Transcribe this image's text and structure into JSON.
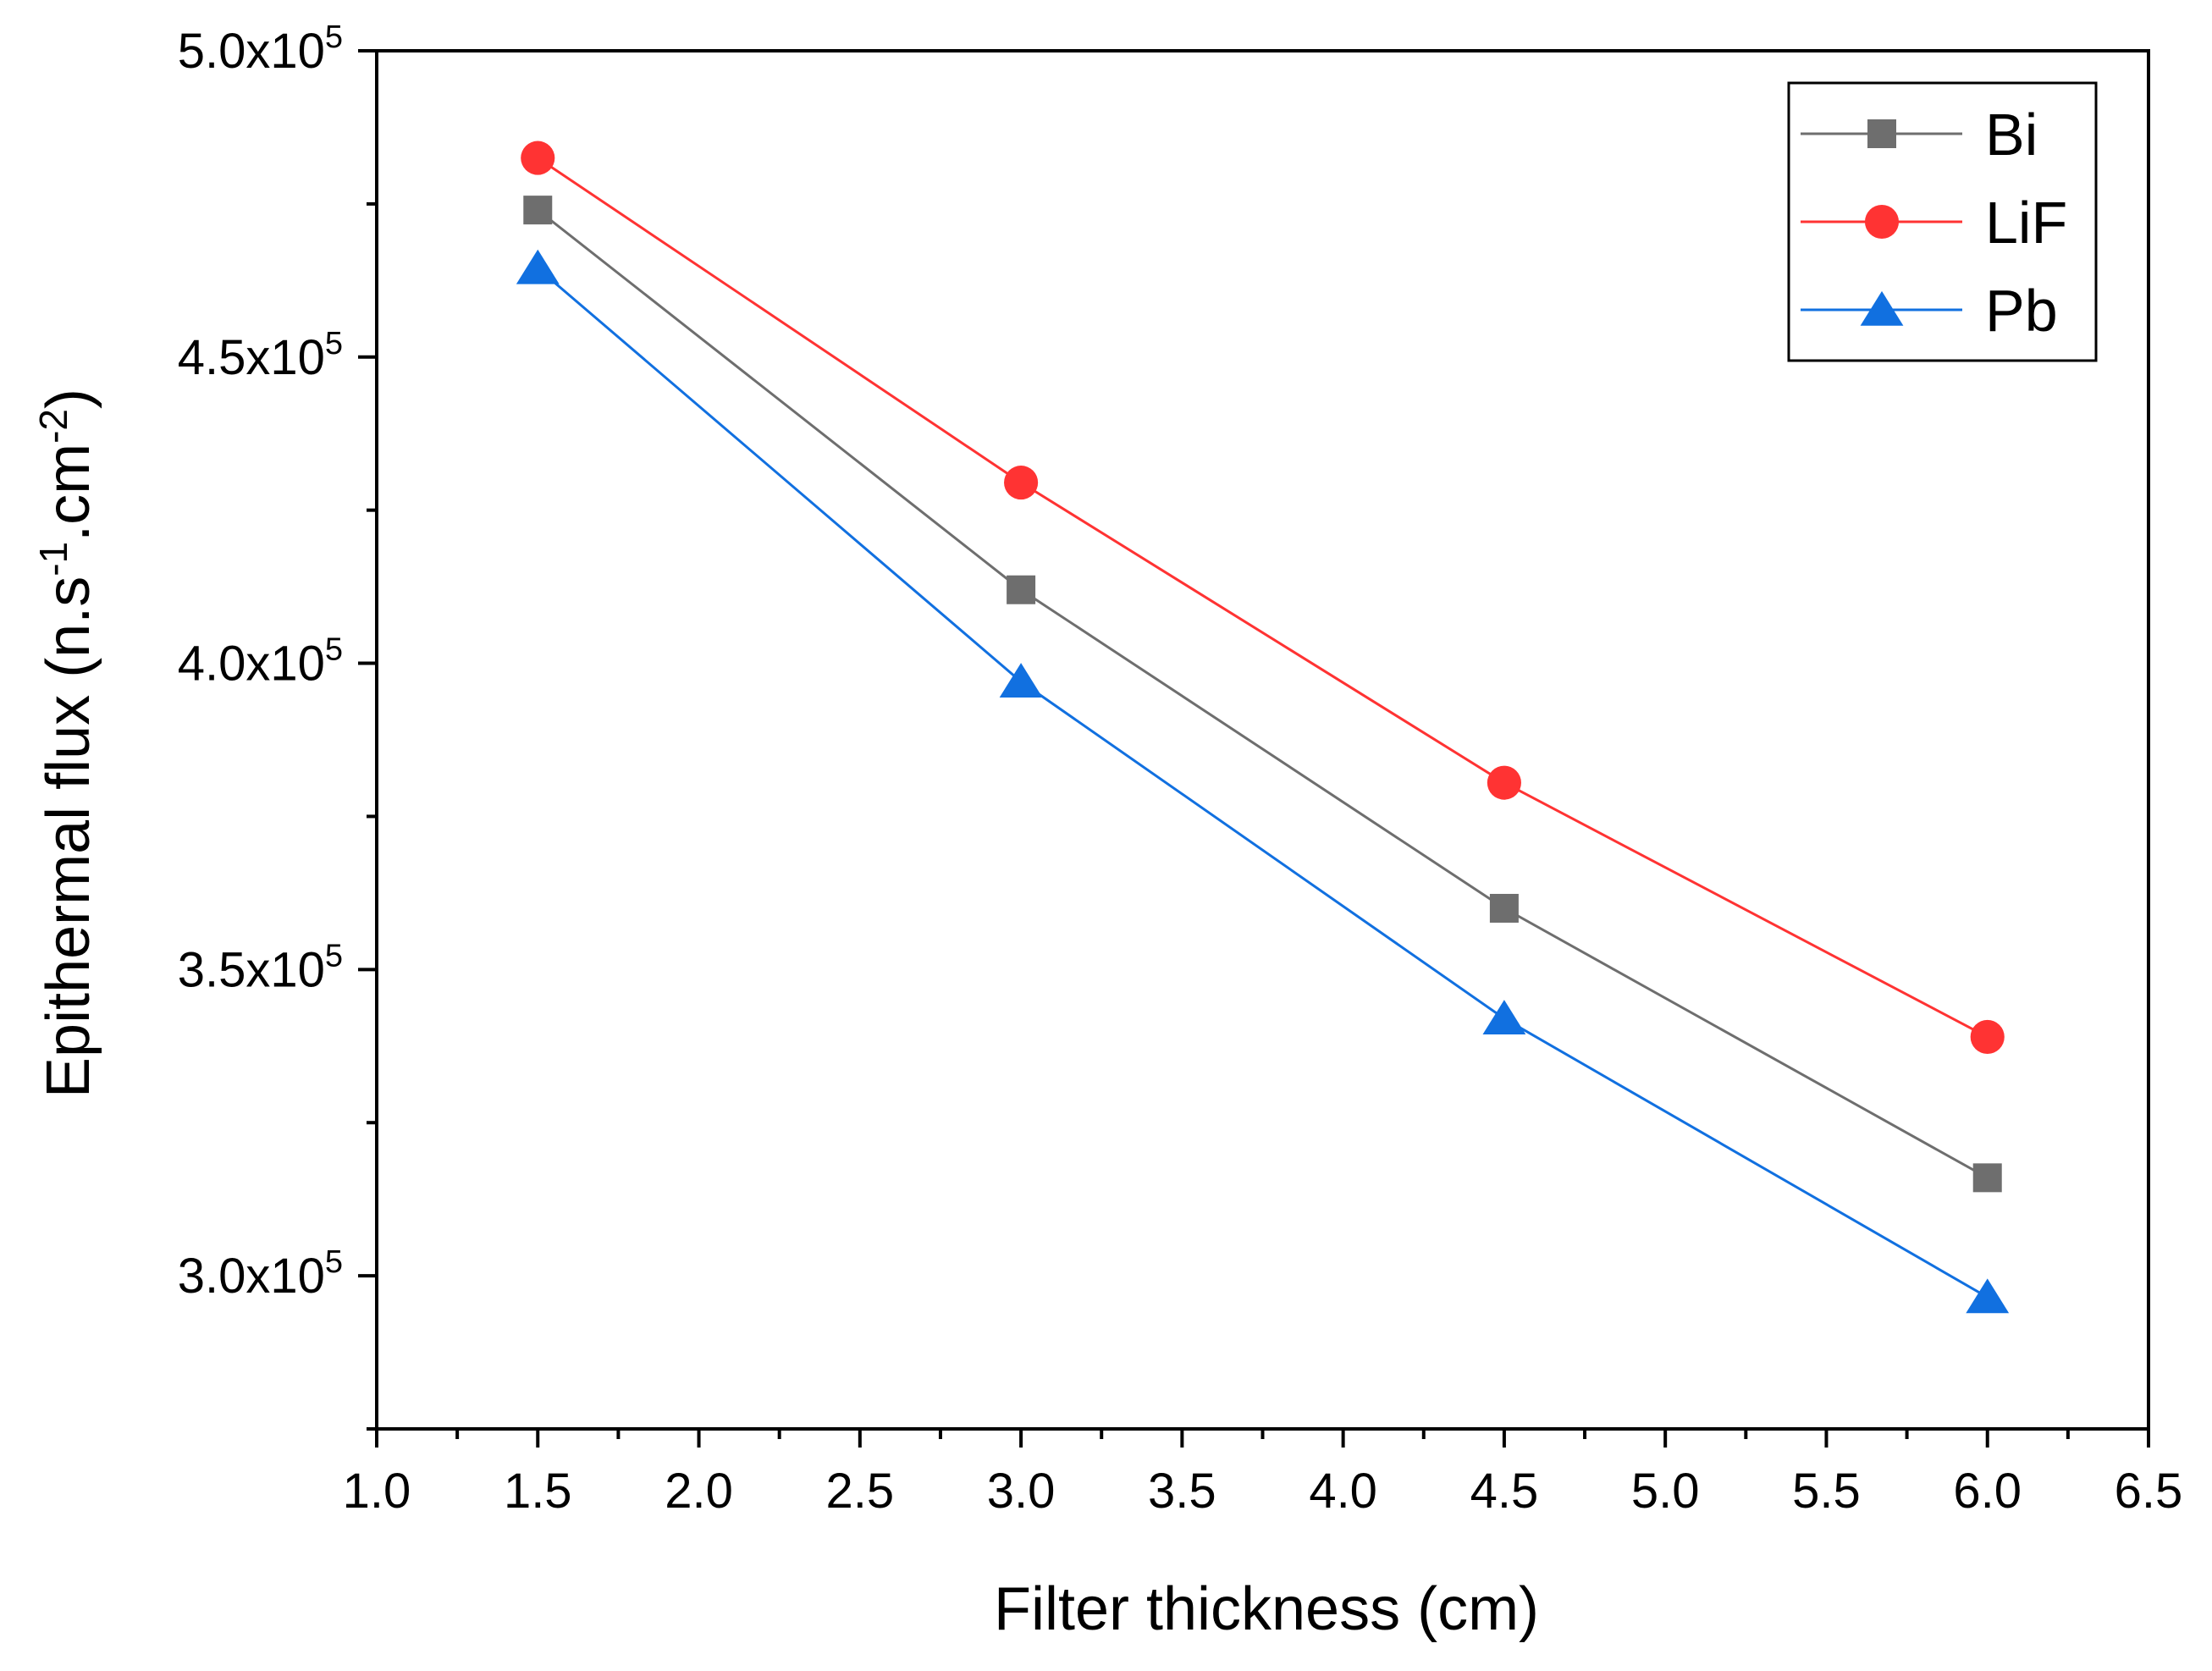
{
  "chart_data": {
    "type": "line",
    "xlabel": "Filter thickness (cm)",
    "ylabel": {
      "prefix": "Epithermal flux (n.s",
      "sup1": "-1",
      "middle": ".cm",
      "sup2": "-2",
      "suffix": ")"
    },
    "xlim": [
      1.0,
      6.5
    ],
    "ylim": [
      275000,
      500000
    ],
    "x_ticks": [
      "1.0",
      "1.5",
      "2.0",
      "2.5",
      "3.0",
      "3.5",
      "4.0",
      "4.5",
      "5.0",
      "5.5",
      "6.0",
      "6.5"
    ],
    "y_ticks": [
      {
        "value": 300000,
        "mantissa": "3.0x10",
        "exponent": "5"
      },
      {
        "value": 350000,
        "mantissa": "3.5x10",
        "exponent": "5"
      },
      {
        "value": 400000,
        "mantissa": "4.0x10",
        "exponent": "5"
      },
      {
        "value": 450000,
        "mantissa": "4.5x10",
        "exponent": "5"
      },
      {
        "value": 500000,
        "mantissa": "5.0x10",
        "exponent": "5"
      }
    ],
    "legend_position": "top-right",
    "x": [
      1.5,
      3.0,
      4.5,
      6.0
    ],
    "series": [
      {
        "name": "Bi",
        "marker": "square",
        "color": "#6e6e6e",
        "values": [
          474000,
          412000,
          360000,
          316000
        ]
      },
      {
        "name": "LiF",
        "marker": "circle",
        "color": "#ff3333",
        "values": [
          482500,
          429500,
          380500,
          339000
        ]
      },
      {
        "name": "Pb",
        "marker": "triangle",
        "color": "#1170e0",
        "values": [
          464500,
          397000,
          342000,
          296500
        ]
      }
    ]
  }
}
